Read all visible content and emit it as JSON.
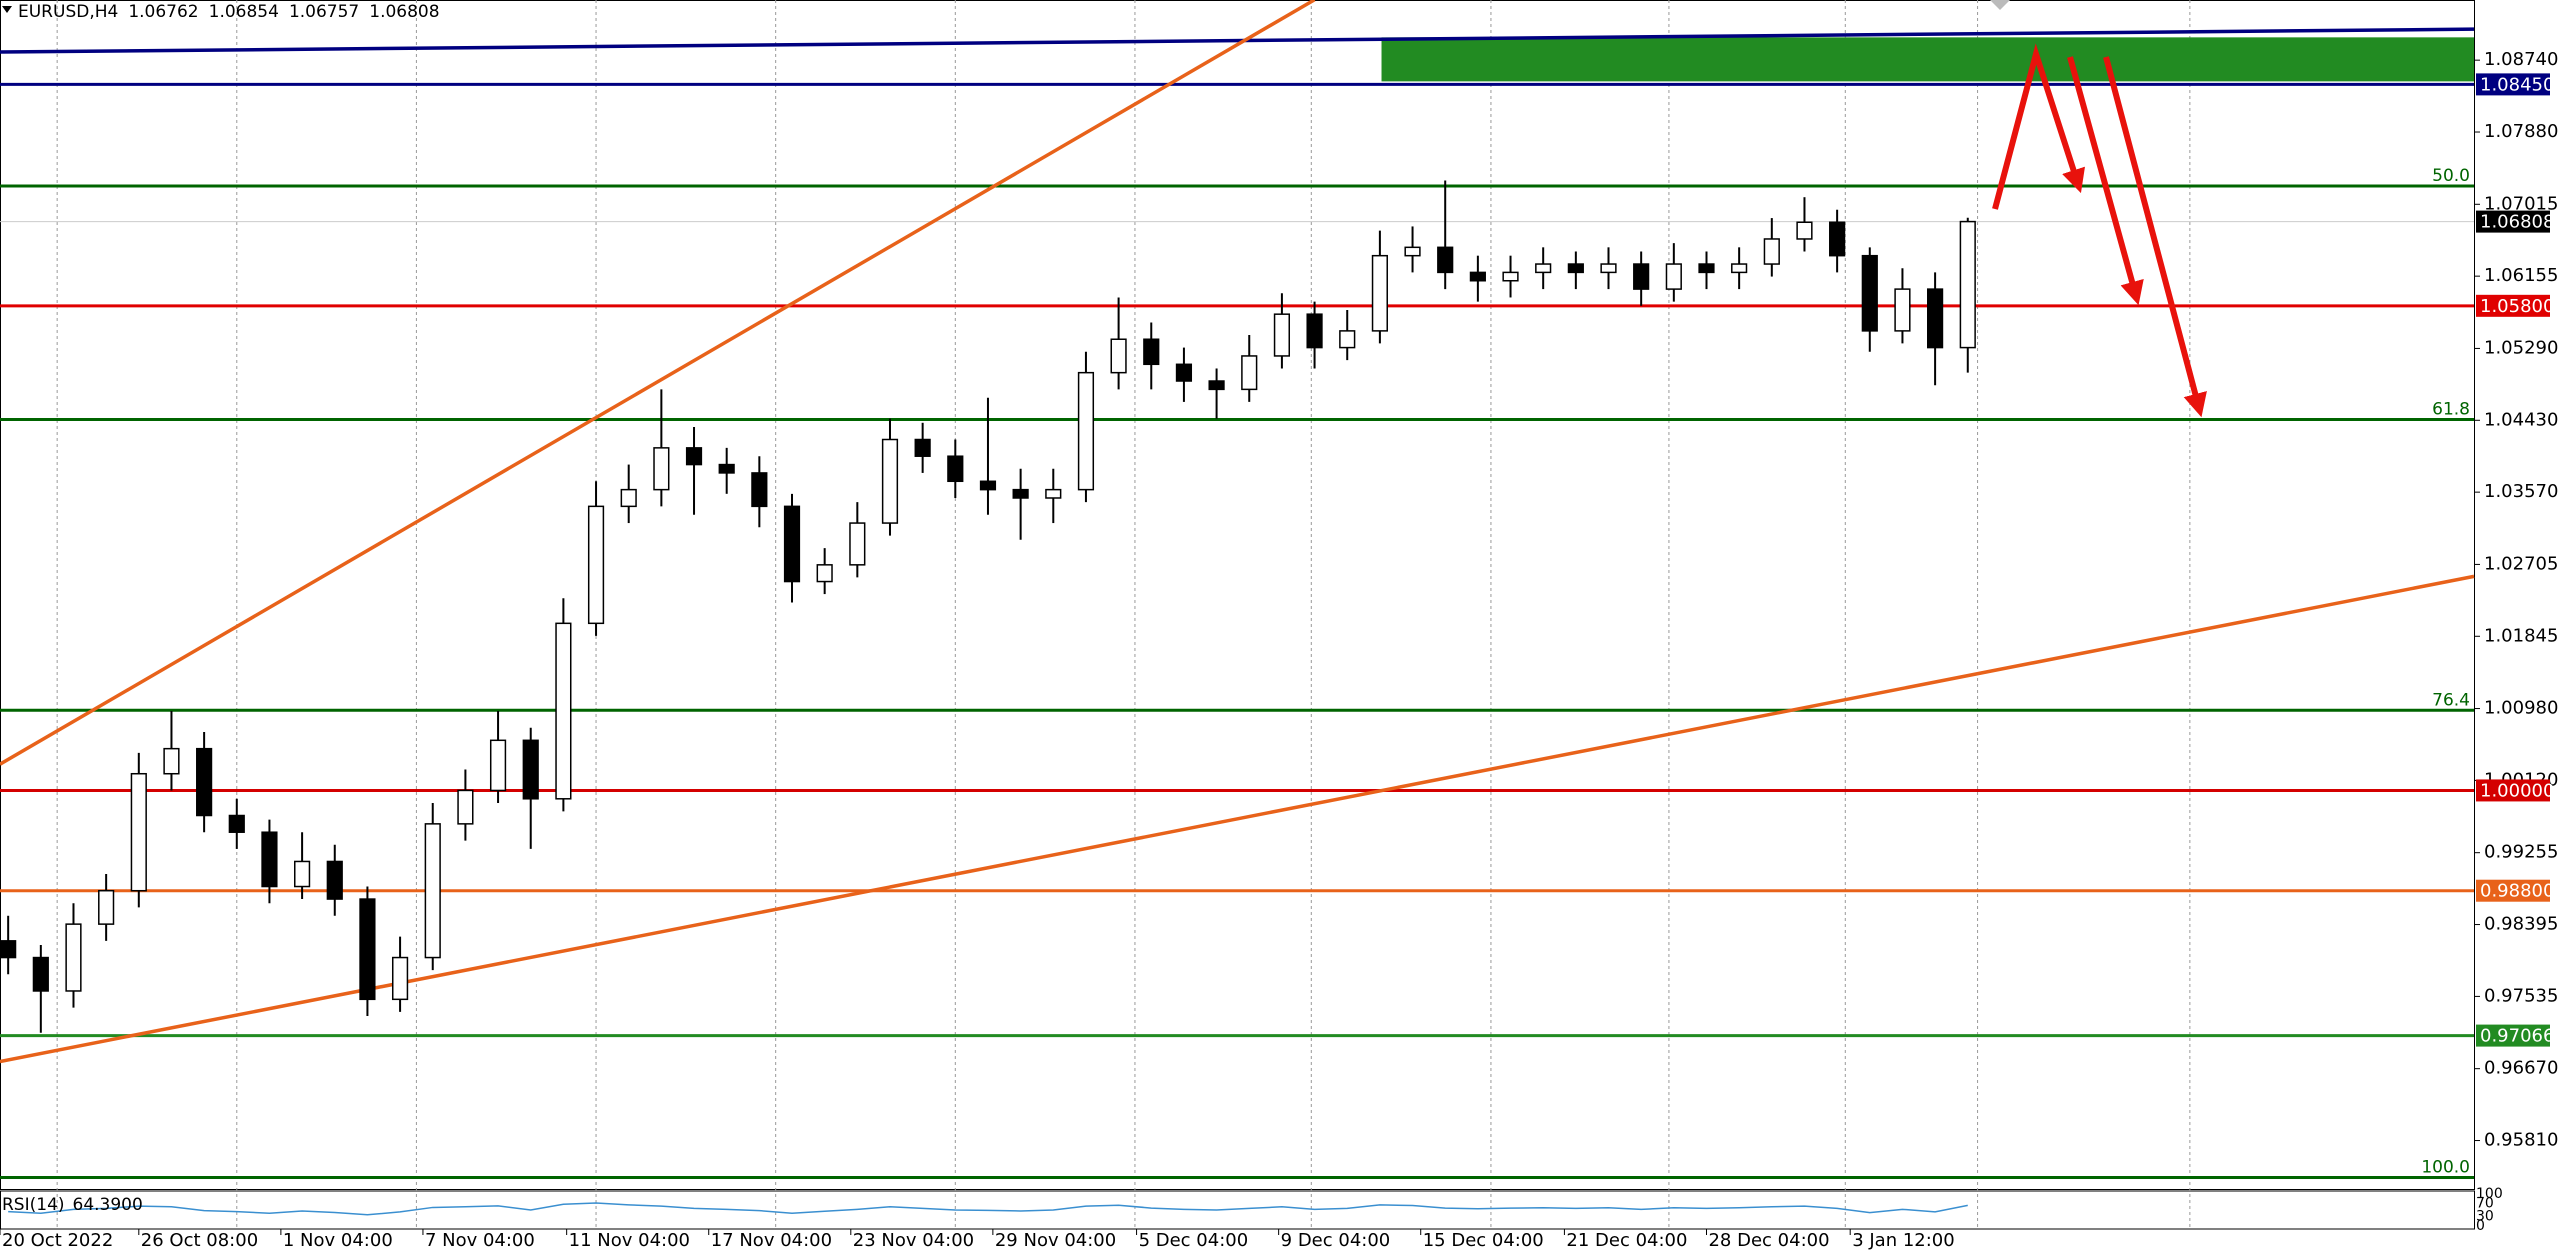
{
  "chart_data": {
    "type": "candlestick",
    "symbol": "EURUSD,H4",
    "header_values": [
      1.06762,
      1.06854,
      1.06757,
      1.06808
    ],
    "open": [
      0.982,
      0.98,
      0.976,
      0.984,
      0.988,
      1.002,
      1.005,
      0.997,
      0.995,
      0.9885,
      0.9915,
      0.987,
      0.975,
      0.98,
      0.996,
      1.0,
      1.006,
      0.999,
      1.02,
      1.034,
      1.036,
      1.041,
      1.039,
      1.038,
      1.034,
      1.025,
      1.027,
      1.032,
      1.042,
      1.04,
      1.037,
      1.036,
      1.035,
      1.036,
      1.05,
      1.054,
      1.051,
      1.049,
      1.048,
      1.052,
      1.057,
      1.053,
      1.055,
      1.064,
      1.065,
      1.062,
      1.061,
      1.062,
      1.063,
      1.062,
      1.063,
      1.06,
      1.063,
      1.062,
      1.063,
      1.066,
      1.068,
      1.064,
      1.055,
      1.06,
      1.053
    ],
    "high": [
      0.985,
      0.9815,
      0.9865,
      0.99,
      1.0045,
      1.0095,
      1.007,
      0.999,
      0.9965,
      0.995,
      0.9935,
      0.9885,
      0.9825,
      0.9985,
      1.0025,
      1.0095,
      1.0075,
      1.023,
      1.037,
      1.039,
      1.048,
      1.0435,
      1.041,
      1.04,
      1.0355,
      1.029,
      1.0345,
      1.0445,
      1.044,
      1.042,
      1.047,
      1.0385,
      1.0385,
      1.0525,
      1.059,
      1.056,
      1.053,
      1.0505,
      1.0545,
      1.0595,
      1.0585,
      1.0575,
      1.067,
      1.0675,
      1.073,
      1.064,
      1.064,
      1.065,
      1.0645,
      1.065,
      1.0645,
      1.0655,
      1.0645,
      1.065,
      1.0685,
      1.071,
      1.0695,
      1.065,
      1.0625,
      1.062,
      1.06854
    ],
    "low": [
      0.978,
      0.971,
      0.974,
      0.982,
      0.986,
      1.0,
      0.995,
      0.993,
      0.9865,
      0.987,
      0.985,
      0.973,
      0.9735,
      0.9785,
      0.994,
      0.9985,
      0.993,
      0.9975,
      1.0185,
      1.032,
      1.034,
      1.033,
      1.0355,
      1.0315,
      1.0225,
      1.0235,
      1.0255,
      1.0305,
      1.038,
      1.035,
      1.033,
      1.03,
      1.032,
      1.0345,
      1.048,
      1.048,
      1.0465,
      1.0445,
      1.0465,
      1.0505,
      1.0505,
      1.0515,
      1.0535,
      1.062,
      1.06,
      1.0585,
      1.059,
      1.06,
      1.06,
      1.06,
      1.058,
      1.0585,
      1.06,
      1.06,
      1.0615,
      1.0645,
      1.062,
      1.0525,
      1.0535,
      1.0485,
      1.05
    ],
    "close": [
      0.98,
      0.976,
      0.984,
      0.988,
      1.002,
      1.005,
      0.997,
      0.995,
      0.9885,
      0.9915,
      0.987,
      0.975,
      0.98,
      0.996,
      1.0,
      1.006,
      0.999,
      1.02,
      1.034,
      1.036,
      1.041,
      1.039,
      1.038,
      1.034,
      1.025,
      1.027,
      1.032,
      1.042,
      1.04,
      1.037,
      1.036,
      1.035,
      1.036,
      1.05,
      1.054,
      1.051,
      1.049,
      1.048,
      1.052,
      1.057,
      1.053,
      1.055,
      1.064,
      1.065,
      1.062,
      1.061,
      1.062,
      1.063,
      1.062,
      1.063,
      1.06,
      1.063,
      1.062,
      1.063,
      1.066,
      1.068,
      1.064,
      1.055,
      1.06,
      1.053,
      1.06808
    ],
    "up_color": "#ffffff",
    "down_color": "#000000",
    "xlim": [
      -0.25,
      75.5
    ],
    "xticks": [
      {
        "value": -0.25,
        "label": "20 Oct 2022"
      },
      {
        "value": 4,
        "label": "26 Oct 08:00"
      },
      {
        "value": 8.35,
        "label": "1 Nov 04:00"
      },
      {
        "value": 12.7,
        "label": "7 Nov 04:00"
      },
      {
        "value": 17.1,
        "label": "11 Nov 04:00"
      },
      {
        "value": 21.45,
        "label": "17 Nov 04:00"
      },
      {
        "value": 25.8,
        "label": "23 Nov 04:00"
      },
      {
        "value": 30.15,
        "label": "29 Nov 04:00"
      },
      {
        "value": 34.55,
        "label": "5 Dec 04:00"
      },
      {
        "value": 38.9,
        "label": "9 Dec 04:00"
      },
      {
        "value": 43.25,
        "label": "15 Dec 04:00"
      },
      {
        "value": 47.65,
        "label": "21 Dec 04:00"
      },
      {
        "value": 52,
        "label": "28 Dec 04:00"
      },
      {
        "value": 56.4,
        "label": "3 Jan 12:00"
      }
    ],
    "xgrid": [
      1.5,
      7,
      12.5,
      18,
      23.5,
      29,
      34.5,
      39.9,
      45.4,
      50.85,
      56.25,
      60.3,
      66.8
    ],
    "ylim": [
      0.9523,
      1.0946
    ],
    "yticks": [
      {
        "value": 1.0874,
        "label": "1.08740"
      },
      {
        "value": 1.0788,
        "label": "1.07880"
      },
      1.07015,
      1.06155,
      {
        "value": 1.0529,
        "label": "1.05290"
      },
      {
        "value": 1.0443,
        "label": "1.04430"
      },
      {
        "value": 1.0357,
        "label": "1.03570"
      },
      1.02705,
      1.01845,
      {
        "value": 1.0098,
        "label": "1.00980"
      },
      {
        "value": 1.0012,
        "label": "1.00120"
      },
      0.99255,
      0.98395,
      0.97535,
      {
        "value": 0.9667,
        "label": "0.96670"
      },
      {
        "value": 0.9581,
        "label": "0.95810"
      }
    ],
    "last_price": {
      "value": 1.06808,
      "label": "1.06808",
      "color": "#000000"
    },
    "levels": [
      {
        "value": 1.0845,
        "label": "1.08450",
        "color": "#000080"
      },
      {
        "value": 1.058,
        "label": "1.05800",
        "color": "#e00000"
      },
      {
        "value": 1.0,
        "label": "1.00000",
        "color": "#d40000"
      },
      {
        "value": 0.988,
        "label": "0.98800",
        "color": "#e8621a"
      },
      {
        "value": 0.97066,
        "label": "0.97066",
        "color": "#228b22"
      }
    ],
    "fib_color": "#006400",
    "fib_levels": [
      {
        "name": "50.0",
        "value": 1.07234
      },
      {
        "name": "61.8",
        "value": 1.0444
      },
      {
        "name": "76.4",
        "value": 1.00959
      },
      {
        "name": "100.0",
        "value": 0.95367
      }
    ],
    "trend_lines": [
      {
        "from": [
          -0.25,
          1.08837
        ],
        "to": [
          75.5,
          1.09111
        ],
        "color": "#000080"
      },
      {
        "from": [
          -0.25,
          1.00314
        ],
        "to": [
          40,
          1.09463
        ],
        "color": "#e8621a"
      },
      {
        "from": [
          -0.25,
          0.96756
        ],
        "to": [
          75.5,
          1.02562
        ],
        "color": "#e8621a"
      }
    ],
    "zones": [
      {
        "x_from": 42.05,
        "x_to": 75.5,
        "from": 1.08486,
        "to": 1.09013,
        "color": "#228b22"
      }
    ],
    "rsi": {
      "name": "RSI(14)",
      "current": {
        "value": 64.39,
        "label": "64.3900"
      },
      "color": "#3a8fd0",
      "ylim": [
        0,
        100
      ],
      "yticks": [
        100,
        70,
        30,
        0
      ],
      "values": [
        45,
        40,
        52,
        55,
        62,
        60,
        48,
        45,
        40,
        47,
        42,
        35,
        44,
        58,
        60,
        63,
        50,
        68,
        72,
        66,
        62,
        55,
        52,
        48,
        40,
        46,
        52,
        60,
        55,
        50,
        49,
        47,
        50,
        62,
        65,
        56,
        52,
        50,
        55,
        60,
        52,
        55,
        66,
        64,
        56,
        54,
        56,
        57,
        55,
        57,
        52,
        57,
        55,
        57,
        60,
        62,
        55,
        42,
        52,
        44,
        64.39
      ]
    }
  }
}
